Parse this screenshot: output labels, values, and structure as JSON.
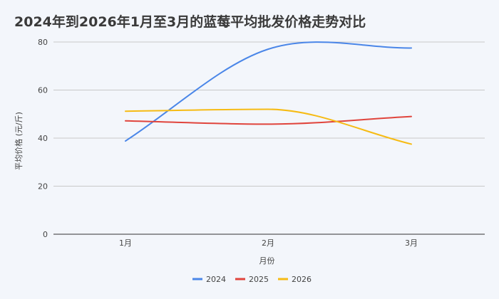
{
  "chart_data": {
    "type": "line",
    "title": "2024年到2026年1月至3月的蓝莓平均批发价格走势对比",
    "xlabel": "月份",
    "ylabel": "平均价格 (元/斤)",
    "categories": [
      "1月",
      "2月",
      "3月"
    ],
    "ylim": [
      0,
      80
    ],
    "yticks": [
      0,
      20,
      40,
      60,
      80
    ],
    "grid": true,
    "smooth": true,
    "legend_position": "bottom",
    "series": [
      {
        "name": "2024",
        "color": "#4a86e8",
        "values": [
          38.8,
          77.0,
          77.5
        ]
      },
      {
        "name": "2025",
        "color": "#e0443c",
        "values": [
          47.2,
          45.8,
          49.0
        ]
      },
      {
        "name": "2026",
        "color": "#f6bb14",
        "values": [
          51.2,
          52.0,
          37.5
        ]
      }
    ]
  }
}
